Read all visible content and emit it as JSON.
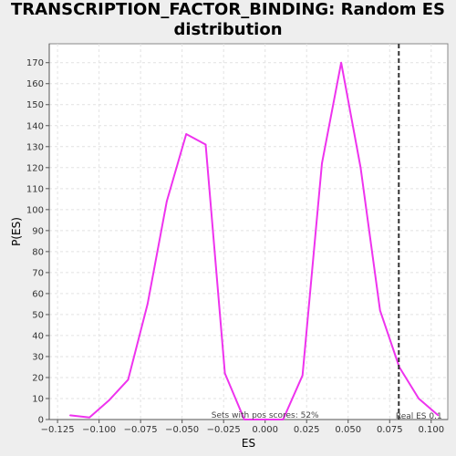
{
  "chart_data": {
    "type": "line",
    "title_lines": [
      "TRANSCRIPTION_FACTOR_BINDING: Random ES",
      "distribution"
    ],
    "xlabel": "ES",
    "ylabel": "P(ES)",
    "xlim": [
      -0.13,
      0.11
    ],
    "ylim": [
      0,
      179
    ],
    "xticks": [
      -0.125,
      -0.1,
      -0.075,
      -0.05,
      -0.025,
      0.0,
      0.025,
      0.05,
      0.075,
      0.1
    ],
    "xtick_labels": [
      "−0.125",
      "−0.100",
      "−0.075",
      "−0.050",
      "−0.025",
      "0.000",
      "0.025",
      "0.050",
      "0.075",
      "0.100"
    ],
    "yticks": [
      0,
      10,
      20,
      30,
      40,
      50,
      60,
      70,
      80,
      90,
      100,
      110,
      120,
      130,
      140,
      150,
      160,
      170
    ],
    "grid": true,
    "series": [
      {
        "color": "#ee33ee",
        "x": [
          -0.1175,
          -0.1058,
          -0.0942,
          -0.0825,
          -0.0708,
          -0.0592,
          -0.0475,
          -0.0358,
          -0.0242,
          -0.0125,
          -0.0008,
          0.0108,
          0.0225,
          0.0342,
          0.0458,
          0.0575,
          0.0692,
          0.0808,
          0.0925,
          0.1042
        ],
        "y": [
          2,
          1,
          9,
          19,
          55,
          104,
          136,
          131,
          22,
          0,
          0,
          0,
          21,
          122,
          170,
          120,
          52,
          25,
          10,
          2
        ]
      }
    ],
    "reference_line": {
      "x": 0.0805,
      "label": "Real ES 0.1",
      "color": "#333333"
    },
    "annotation": "Sets with pos scores: 52%"
  }
}
